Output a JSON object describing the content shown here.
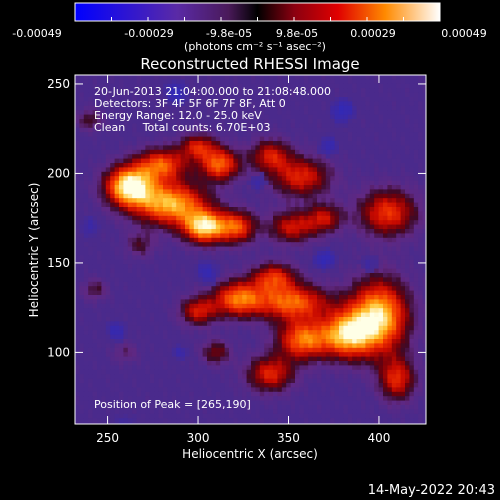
{
  "chart_data": {
    "type": "heatmap",
    "title": "Reconstructed RHESSI Image",
    "xlabel": "Heliocentric X (arcsec)",
    "ylabel": "Heliocentric Y (arcsec)",
    "xlim": [
      232,
      426
    ],
    "ylim": [
      60,
      255
    ],
    "x_ticks": [
      250,
      300,
      350,
      400
    ],
    "y_ticks": [
      100,
      150,
      200,
      250
    ],
    "colorbar": {
      "ticks": [
        "-0.00049",
        "-0.00029",
        "-9.8e-05",
        "9.8e-05",
        "0.00029",
        "0.00049"
      ],
      "range": [
        -0.00049,
        0.00049
      ],
      "unit_label": "(photons cm⁻² s⁻¹ asec⁻²)"
    },
    "annotations": [
      "20-Jun-2013 21:04:00.000 to 21:08:48.000",
      "Detectors: 3F 4F 5F 6F 7F 8F, Att 0",
      "Energy Range: 12.0 - 25.0 keV",
      "Clean     Total counts: 6.70E+03"
    ],
    "peak_label": "Position of Peak = [265,190]",
    "emission_blobs": [
      {
        "x": 262,
        "y": 193,
        "w": 13,
        "h": 11,
        "v": 1.0
      },
      {
        "x": 285,
        "y": 183,
        "w": 20,
        "h": 12,
        "v": 0.85
      },
      {
        "x": 304,
        "y": 170,
        "w": 12,
        "h": 9,
        "v": 0.9
      },
      {
        "x": 322,
        "y": 170,
        "w": 10,
        "h": 9,
        "v": 0.6
      },
      {
        "x": 280,
        "y": 205,
        "w": 14,
        "h": 9,
        "v": 0.65
      },
      {
        "x": 312,
        "y": 205,
        "w": 11,
        "h": 9,
        "v": 0.7
      },
      {
        "x": 300,
        "y": 215,
        "w": 10,
        "h": 7,
        "v": 0.5
      },
      {
        "x": 357,
        "y": 198,
        "w": 16,
        "h": 11,
        "v": 0.55
      },
      {
        "x": 340,
        "y": 210,
        "w": 11,
        "h": 9,
        "v": 0.5
      },
      {
        "x": 352,
        "y": 170,
        "w": 13,
        "h": 9,
        "v": 0.5
      },
      {
        "x": 405,
        "y": 178,
        "w": 16,
        "h": 13,
        "v": 0.6
      },
      {
        "x": 370,
        "y": 175,
        "w": 10,
        "h": 8,
        "v": 0.45
      },
      {
        "x": 400,
        "y": 120,
        "w": 16,
        "h": 20,
        "v": 0.92
      },
      {
        "x": 382,
        "y": 110,
        "w": 14,
        "h": 13,
        "v": 0.8
      },
      {
        "x": 358,
        "y": 107,
        "w": 14,
        "h": 11,
        "v": 0.72
      },
      {
        "x": 352,
        "y": 128,
        "w": 20,
        "h": 10,
        "v": 0.7
      },
      {
        "x": 322,
        "y": 130,
        "w": 14,
        "h": 10,
        "v": 0.7
      },
      {
        "x": 300,
        "y": 123,
        "w": 10,
        "h": 8,
        "v": 0.5
      },
      {
        "x": 342,
        "y": 142,
        "w": 12,
        "h": 8,
        "v": 0.55
      },
      {
        "x": 410,
        "y": 85,
        "w": 10,
        "h": 12,
        "v": 0.55
      },
      {
        "x": 340,
        "y": 88,
        "w": 13,
        "h": 10,
        "v": 0.55
      },
      {
        "x": 310,
        "y": 100,
        "w": 8,
        "h": 7,
        "v": 0.35
      },
      {
        "x": 240,
        "y": 230,
        "w": 7,
        "h": 6,
        "v": 0.28
      },
      {
        "x": 243,
        "y": 135,
        "w": 7,
        "h": 6,
        "v": 0.25
      },
      {
        "x": 260,
        "y": 100,
        "w": 7,
        "h": 6,
        "v": 0.18
      },
      {
        "x": 268,
        "y": 160,
        "w": 8,
        "h": 7,
        "v": 0.25
      }
    ],
    "negative_blobs": [
      {
        "x": 288,
        "y": 245,
        "w": 10,
        "h": 10,
        "v": 0.5
      },
      {
        "x": 380,
        "y": 235,
        "w": 10,
        "h": 10,
        "v": 0.5
      },
      {
        "x": 372,
        "y": 215,
        "w": 8,
        "h": 8,
        "v": 0.45
      },
      {
        "x": 333,
        "y": 195,
        "w": 7,
        "h": 7,
        "v": 0.4
      },
      {
        "x": 370,
        "y": 152,
        "w": 9,
        "h": 8,
        "v": 0.5
      },
      {
        "x": 305,
        "y": 145,
        "w": 10,
        "h": 10,
        "v": 0.45
      },
      {
        "x": 255,
        "y": 112,
        "w": 9,
        "h": 9,
        "v": 0.45
      },
      {
        "x": 240,
        "y": 170,
        "w": 8,
        "h": 10,
        "v": 0.4
      },
      {
        "x": 260,
        "y": 60,
        "w": 12,
        "h": 10,
        "v": 0.35
      },
      {
        "x": 395,
        "y": 150,
        "w": 9,
        "h": 8,
        "v": 0.35
      },
      {
        "x": 290,
        "y": 100,
        "w": 8,
        "h": 7,
        "v": 0.4
      }
    ]
  },
  "footer": {
    "timestamp": "14-May-2022 20:43"
  }
}
